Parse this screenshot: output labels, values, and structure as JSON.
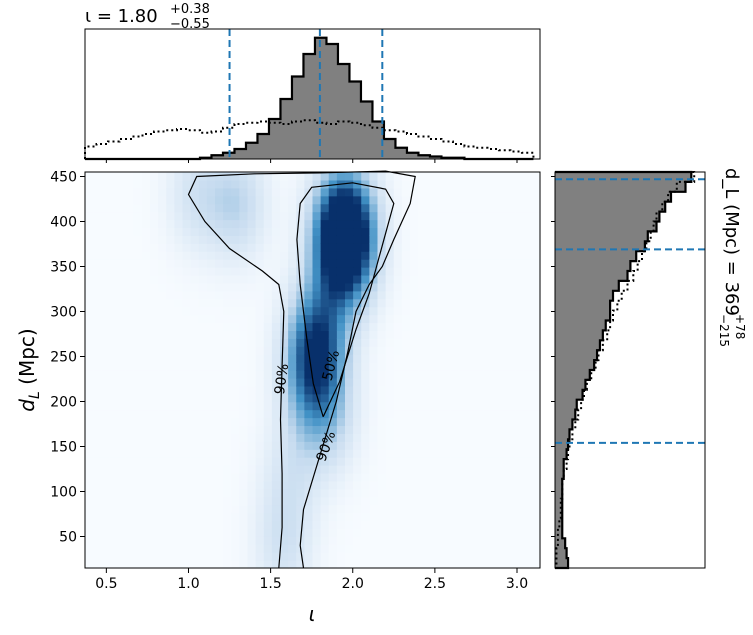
{
  "chart_data": [
    {
      "type": "heatmap",
      "panel": "joint",
      "xlabel": "ι",
      "ylabel": "d_L (Mpc)",
      "xlim": [
        0.37,
        3.14
      ],
      "ylim": [
        15,
        455
      ],
      "x_ticks": [
        "0.5",
        "1.0",
        "1.5",
        "2.0",
        "2.5",
        "3.0"
      ],
      "y_ticks": [
        "50",
        "100",
        "150",
        "200",
        "250",
        "300",
        "350",
        "400",
        "450"
      ],
      "colormap": "Blues",
      "density_peaks": [
        {
          "iota": 1.95,
          "dl": 400,
          "weight": 1.0
        },
        {
          "iota": 1.95,
          "dl": 360,
          "weight": 0.8
        },
        {
          "iota": 1.78,
          "dl": 270,
          "weight": 0.75
        },
        {
          "iota": 1.75,
          "dl": 220,
          "weight": 0.45
        },
        {
          "iota": 1.3,
          "dl": 420,
          "weight": 0.35
        },
        {
          "iota": 1.05,
          "dl": 430,
          "weight": 0.25
        },
        {
          "iota": 1.85,
          "dl": 180,
          "weight": 0.3
        },
        {
          "iota": 1.62,
          "dl": 120,
          "weight": 0.2
        },
        {
          "iota": 1.58,
          "dl": 40,
          "weight": 0.25
        }
      ],
      "contours": [
        {
          "label": "50%",
          "points": [
            [
              1.82,
              183
            ],
            [
              1.76,
              220
            ],
            [
              1.72,
              270
            ],
            [
              1.68,
              330
            ],
            [
              1.66,
              380
            ],
            [
              1.68,
              420
            ],
            [
              1.75,
              438
            ],
            [
              2.0,
              443
            ],
            [
              2.2,
              436
            ],
            [
              2.25,
              420
            ],
            [
              2.16,
              360
            ],
            [
              2.1,
              320
            ],
            [
              2.02,
              280
            ],
            [
              1.92,
              222
            ],
            [
              1.82,
              183
            ]
          ]
        },
        {
          "label": "90%",
          "points": [
            [
              1.55,
              15
            ],
            [
              1.57,
              60
            ],
            [
              1.57,
              120
            ],
            [
              1.56,
              180
            ],
            [
              1.57,
              240
            ],
            [
              1.58,
              300
            ],
            [
              1.55,
              330
            ],
            [
              1.45,
              345
            ],
            [
              1.25,
              370
            ],
            [
              1.1,
              400
            ],
            [
              1.0,
              430
            ],
            [
              1.05,
              450
            ],
            [
              1.4,
              453
            ],
            [
              1.8,
              454
            ],
            [
              2.2,
              456
            ],
            [
              2.38,
              450
            ],
            [
              2.35,
              420
            ],
            [
              2.25,
              380
            ],
            [
              2.18,
              350
            ],
            [
              2.1,
              330
            ],
            [
              2.02,
              300
            ],
            [
              1.97,
              255
            ],
            [
              1.9,
              200
            ],
            [
              1.8,
              140
            ],
            [
              1.7,
              80
            ],
            [
              1.68,
              40
            ],
            [
              1.7,
              15
            ]
          ]
        }
      ],
      "contour_labels": [
        {
          "text": "90%",
          "iota": 1.57,
          "dl": 225,
          "rotation": -82
        },
        {
          "text": "50%",
          "iota": 1.87,
          "dl": 240,
          "rotation": -75
        },
        {
          "text": "90%",
          "iota": 1.84,
          "dl": 150,
          "rotation": -70
        }
      ]
    },
    {
      "type": "histogram",
      "panel": "top_marginal",
      "title": "ι = 1.80",
      "title_sup": "+0.38",
      "title_sub": "−0.55",
      "xlim": [
        0.37,
        3.14
      ],
      "bin_edges": [
        0.37,
        0.44,
        0.51,
        0.58,
        0.65,
        0.72,
        0.79,
        0.86,
        0.93,
        1.0,
        1.07,
        1.14,
        1.21,
        1.28,
        1.35,
        1.42,
        1.49,
        1.56,
        1.63,
        1.7,
        1.77,
        1.84,
        1.91,
        1.98,
        2.05,
        2.12,
        2.19,
        2.26,
        2.33,
        2.4,
        2.47,
        2.54,
        2.61,
        2.68,
        2.75,
        2.82,
        2.89,
        2.96,
        3.03,
        3.1
      ],
      "posterior": [
        0,
        0,
        0,
        0,
        0,
        0,
        0,
        0,
        0,
        0,
        0.01,
        0.03,
        0.05,
        0.08,
        0.13,
        0.2,
        0.32,
        0.48,
        0.66,
        0.84,
        0.97,
        0.92,
        0.76,
        0.62,
        0.46,
        0.3,
        0.16,
        0.09,
        0.05,
        0.03,
        0.02,
        0.01,
        0.01,
        0,
        0,
        0,
        0,
        0,
        0
      ],
      "prior": [
        0.1,
        0.12,
        0.14,
        0.16,
        0.18,
        0.2,
        0.22,
        0.23,
        0.24,
        0.23,
        0.21,
        0.22,
        0.25,
        0.28,
        0.29,
        0.3,
        0.29,
        0.28,
        0.3,
        0.31,
        0.29,
        0.28,
        0.3,
        0.29,
        0.27,
        0.25,
        0.23,
        0.22,
        0.2,
        0.18,
        0.16,
        0.14,
        0.12,
        0.1,
        0.09,
        0.08,
        0.07,
        0.06,
        0.05
      ],
      "quantile_lines": [
        1.25,
        1.8,
        2.18
      ]
    },
    {
      "type": "histogram",
      "panel": "right_marginal",
      "orientation": "horizontal",
      "label": "d_L (Mpc) = 369",
      "label_sup": "+78",
      "label_sub": "−215",
      "ylim": [
        15,
        455
      ],
      "bin_edges": [
        15,
        26,
        37,
        48,
        59,
        70,
        81,
        92,
        103,
        114,
        125,
        136,
        147,
        158,
        169,
        180,
        191,
        202,
        213,
        224,
        235,
        246,
        257,
        268,
        279,
        290,
        301,
        312,
        323,
        334,
        345,
        356,
        367,
        378,
        389,
        400,
        411,
        422,
        433,
        444,
        455
      ],
      "posterior": [
        0.09,
        0.08,
        0.07,
        0.05,
        0.05,
        0.05,
        0.05,
        0.05,
        0.05,
        0.06,
        0.06,
        0.08,
        0.09,
        0.1,
        0.12,
        0.14,
        0.15,
        0.19,
        0.21,
        0.24,
        0.27,
        0.29,
        0.31,
        0.33,
        0.35,
        0.38,
        0.38,
        0.4,
        0.44,
        0.5,
        0.52,
        0.56,
        0.62,
        0.64,
        0.7,
        0.72,
        0.76,
        0.8,
        0.9,
        0.94
      ],
      "prior": [
        0.01,
        0.01,
        0.02,
        0.02,
        0.03,
        0.04,
        0.04,
        0.05,
        0.05,
        0.06,
        0.08,
        0.09,
        0.1,
        0.12,
        0.14,
        0.16,
        0.18,
        0.2,
        0.22,
        0.25,
        0.28,
        0.3,
        0.33,
        0.36,
        0.38,
        0.4,
        0.43,
        0.46,
        0.5,
        0.54,
        0.57,
        0.6,
        0.63,
        0.66,
        0.68,
        0.7,
        0.74,
        0.78,
        0.84,
        0.96
      ],
      "quantile_lines": [
        154,
        369,
        447
      ]
    }
  ],
  "colors": {
    "posterior_fill": "#808080",
    "quantile_line": "#1f77b4",
    "heat_low": "#f7fbff",
    "heat_high": "#08306b"
  }
}
